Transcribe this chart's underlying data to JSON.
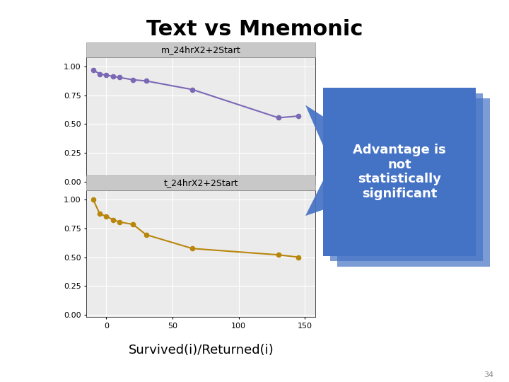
{
  "title": "Text vs Mnemonic",
  "xlabel": "Survived(i)/Returned(i)",
  "slide_number": "34",
  "top_panel_label": "m_24hrX2+2Start",
  "bottom_panel_label": "t_24hrX2+2Start",
  "annotation_text": "Advantage is\nnot\nstatistically\nsignificant",
  "annotation_bg": "#4472C4",
  "annotation_text_color": "#FFFFFF",
  "purple_x": [
    -10,
    -5,
    0,
    5,
    10,
    20,
    30,
    65,
    130,
    145
  ],
  "purple_y": [
    0.97,
    0.935,
    0.925,
    0.915,
    0.905,
    0.885,
    0.875,
    0.8,
    0.555,
    0.57
  ],
  "purple_color": "#7B68B5",
  "gold_x": [
    -10,
    -5,
    0,
    5,
    10,
    20,
    30,
    65,
    130,
    145
  ],
  "gold_y": [
    1.0,
    0.875,
    0.855,
    0.825,
    0.805,
    0.785,
    0.695,
    0.575,
    0.52,
    0.5
  ],
  "gold_color": "#B8860B",
  "panel_header_bg": "#C8C8C8",
  "panel_plot_bg": "#EBEBEB",
  "xlim": [
    -15,
    158
  ],
  "ylim": [
    -0.02,
    1.08
  ],
  "yticks": [
    0.0,
    0.25,
    0.5,
    0.75,
    1.0
  ],
  "xticks": [
    0,
    50,
    100,
    150
  ],
  "arrow_color": "#4472C4",
  "bg_color": "#FFFFFF"
}
